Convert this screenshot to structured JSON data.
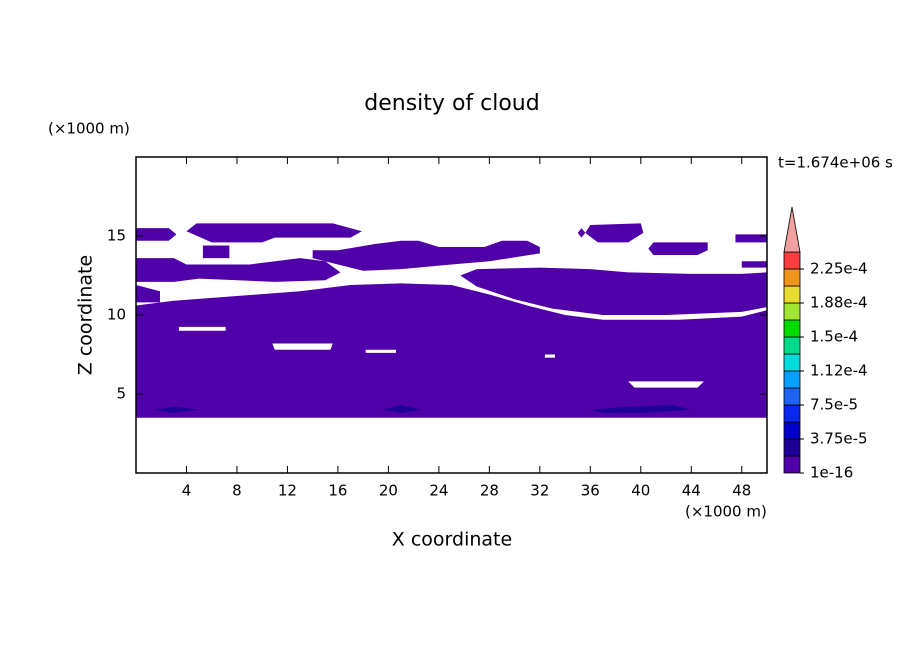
{
  "chart_data": {
    "type": "contour",
    "title": "density of cloud",
    "xlabel": "X coordinate",
    "ylabel": "Z coordinate",
    "x_unit": "(×1000 m)",
    "y_unit": "(×1000 m)",
    "time_label": "t=1.674e+06 s",
    "xlim": [
      0,
      50
    ],
    "ylim": [
      0,
      20
    ],
    "xticks": [
      4,
      8,
      12,
      16,
      20,
      24,
      28,
      32,
      36,
      40,
      44,
      48
    ],
    "yticks": [
      5,
      10,
      15
    ],
    "colorbar": {
      "levels": [
        1e-16,
        1.875e-05,
        3.75e-05,
        5.625e-05,
        7.5e-05,
        9.375e-05,
        0.0001125,
        0.00013125,
        0.00015,
        0.00016875,
        0.0001875,
        0.00020625,
        0.000225,
        0.00024375
      ],
      "colors": [
        "#5000a8",
        "#1e0096",
        "#0000c8",
        "#0a28f0",
        "#1e64f0",
        "#00a0ff",
        "#00dcdc",
        "#00dc8c",
        "#00dc00",
        "#a0e632",
        "#e6dc32",
        "#f0961e",
        "#fa3c3c",
        "#f0a0a0"
      ],
      "ticks": [
        {
          "value": 1e-16,
          "label": "1e-16"
        },
        {
          "value": 3.75e-05,
          "label": "3.75e-5"
        },
        {
          "value": 7.5e-05,
          "label": "7.5e-5"
        },
        {
          "value": 0.0001125,
          "label": "1.12e-4"
        },
        {
          "value": 0.00015,
          "label": "1.5e-4"
        },
        {
          "value": 0.0001875,
          "label": "1.88e-4"
        },
        {
          "value": 0.000225,
          "label": "2.25e-4"
        }
      ]
    },
    "regions": [
      {
        "value": 1e-16,
        "x": [
          0,
          3,
          8,
          13,
          17,
          21,
          25,
          28,
          31,
          34,
          37,
          43,
          48,
          50,
          50,
          0
        ],
        "z": [
          10.6,
          10.9,
          11.2,
          11.5,
          11.9,
          12,
          11.9,
          11.3,
          10.6,
          10,
          9.7,
          9.7,
          9.9,
          10.3,
          3.5,
          3.5
        ]
      },
      {
        "value": 1e-16,
        "x": [
          0,
          2.6,
          3.2,
          2.6,
          0
        ],
        "z": [
          15.5,
          15.5,
          15.1,
          14.7,
          14.7
        ]
      },
      {
        "value": 1e-16,
        "x": [
          4,
          4.8,
          15.6,
          17.9,
          17,
          11,
          10,
          6
        ],
        "z": [
          15.3,
          15.8,
          15.8,
          15.3,
          14.9,
          14.9,
          14.6,
          14.6
        ]
      },
      {
        "value": 1e-16,
        "x": [
          5.3,
          7.4,
          7.4,
          5.3
        ],
        "z": [
          14.4,
          14.4,
          13.6,
          13.6
        ]
      },
      {
        "value": 1e-16,
        "x": [
          0,
          3,
          4,
          9,
          13,
          15,
          16.2,
          15,
          11,
          5,
          3,
          0
        ],
        "z": [
          13.6,
          13.6,
          13.2,
          13.2,
          13.6,
          13.4,
          12.7,
          12.2,
          12.1,
          12.3,
          12.1,
          12.1
        ]
      },
      {
        "value": 1e-16,
        "x": [
          0,
          1.9,
          1.9,
          0
        ],
        "z": [
          11.9,
          11.5,
          10.8,
          10.8
        ]
      },
      {
        "value": 1e-16,
        "x": [
          14,
          16,
          19,
          21,
          22.4,
          24,
          27.6,
          29,
          31,
          32,
          32,
          28,
          25,
          21,
          18,
          16,
          14
        ],
        "z": [
          14.1,
          14.1,
          14.5,
          14.7,
          14.7,
          14.3,
          14.3,
          14.7,
          14.7,
          14.3,
          13.9,
          13.4,
          13.2,
          12.9,
          12.8,
          13.2,
          13.6
        ]
      },
      {
        "value": 1e-16,
        "x": [
          25.7,
          27,
          32,
          36,
          39,
          44,
          48,
          50,
          50,
          48,
          42,
          37,
          33,
          30,
          27
        ],
        "z": [
          12.5,
          12.9,
          13,
          12.9,
          12.7,
          12.6,
          12.6,
          12.7,
          10.5,
          10.2,
          10,
          10,
          10.4,
          11,
          11.8
        ]
      },
      {
        "value": 1e-16,
        "x": [
          35.6,
          36,
          40,
          40.2,
          39,
          36.6
        ],
        "z": [
          15.2,
          15.7,
          15.8,
          15.2,
          14.6,
          14.6
        ]
      },
      {
        "value": 1e-16,
        "x": [
          40.6,
          41,
          45.3,
          45.3,
          44.5,
          41
        ],
        "z": [
          14.2,
          14.6,
          14.6,
          14.1,
          13.8,
          13.8
        ]
      },
      {
        "value": 1e-16,
        "x": [
          47.5,
          50,
          50,
          47.5
        ],
        "z": [
          15.1,
          15.1,
          14.6,
          14.6
        ]
      },
      {
        "value": 1e-16,
        "x": [
          48,
          50,
          50,
          48
        ],
        "z": [
          13.4,
          13.4,
          13,
          13
        ]
      },
      {
        "value": 1e-16,
        "x": [
          35,
          35.3,
          35.6,
          35.3
        ],
        "z": [
          15.2,
          15.5,
          15.2,
          14.9
        ]
      },
      {
        "value": 2e-05,
        "x": [
          1.5,
          3,
          5,
          3
        ],
        "z": [
          4.0,
          4.2,
          4.0,
          3.8
        ]
      },
      {
        "value": 2e-05,
        "x": [
          19.5,
          21,
          22.6,
          21
        ],
        "z": [
          4.0,
          4.3,
          4.0,
          3.8
        ]
      },
      {
        "value": 2e-05,
        "x": [
          36,
          39,
          42.5,
          44,
          40,
          37
        ],
        "z": [
          4.0,
          4.2,
          4.3,
          4.0,
          3.8,
          3.8
        ]
      }
    ],
    "holes": [
      {
        "x": [
          3.4,
          7.1,
          7.1,
          3.4
        ],
        "z": [
          9.25,
          9.25,
          9.0,
          9.0
        ]
      },
      {
        "x": [
          10.8,
          15.6,
          15.4,
          11
        ],
        "z": [
          8.2,
          8.2,
          7.8,
          7.8
        ]
      },
      {
        "x": [
          18.2,
          20.6,
          20.6,
          18.2
        ],
        "z": [
          7.8,
          7.8,
          7.6,
          7.6
        ]
      },
      {
        "x": [
          32.4,
          33.2,
          33.2,
          32.4
        ],
        "z": [
          7.5,
          7.5,
          7.3,
          7.3
        ]
      },
      {
        "x": [
          39,
          45,
          44.5,
          39.5
        ],
        "z": [
          5.8,
          5.8,
          5.4,
          5.4
        ]
      }
    ]
  }
}
